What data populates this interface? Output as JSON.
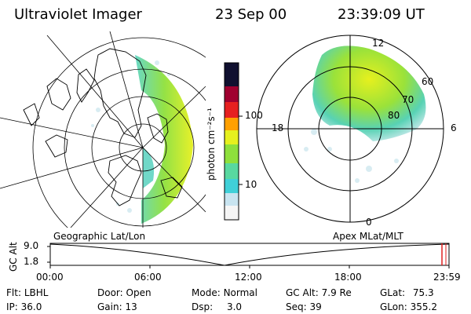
{
  "header": {
    "title": "Ultraviolet Imager",
    "date": "23 Sep 00",
    "time": "23:39:09 UT"
  },
  "colorbar": {
    "unit_label": "photon cm⁻²s⁻¹",
    "ticks": [
      "100",
      "10"
    ]
  },
  "left_panel": {
    "label": "Geographic Lat/Lon"
  },
  "right_panel": {
    "label": "Apex MLat/MLT",
    "mlt_labels": [
      "12",
      "18",
      "6",
      "0"
    ],
    "mlat_labels": [
      "60",
      "70",
      "80"
    ]
  },
  "altitude_plot": {
    "ylabel": "GC Alt",
    "yticks": [
      "9.0",
      "1.8"
    ],
    "xticks": [
      "00:00",
      "06:00",
      "12:00",
      "18:00",
      "23:59"
    ]
  },
  "info": {
    "filter_label": "Flt:",
    "filter": "LBHL",
    "ip_label": "IP:",
    "ip": "36.0",
    "door_label": "Door:",
    "door": "Open",
    "gain_label": "Gain:",
    "gain": "13",
    "mode_label": "Mode:",
    "mode": "Normal",
    "dsp_label": "Dsp:",
    "dsp": "3.0",
    "gcalt_label": "GC Alt:",
    "gcalt": "7.9 Re",
    "seq_label": "Seq:",
    "seq": "39",
    "glat_label": "GLat:",
    "glat": "75.3",
    "glon_label": "GLon:",
    "glon": "355.2"
  },
  "colors": {
    "colorbar": [
      "#f5f5f5",
      "#c8e4f0",
      "#40d0d8",
      "#8ee03c",
      "#e6f01e",
      "#ffa000",
      "#e62020",
      "#a00030",
      "#101030"
    ]
  }
}
